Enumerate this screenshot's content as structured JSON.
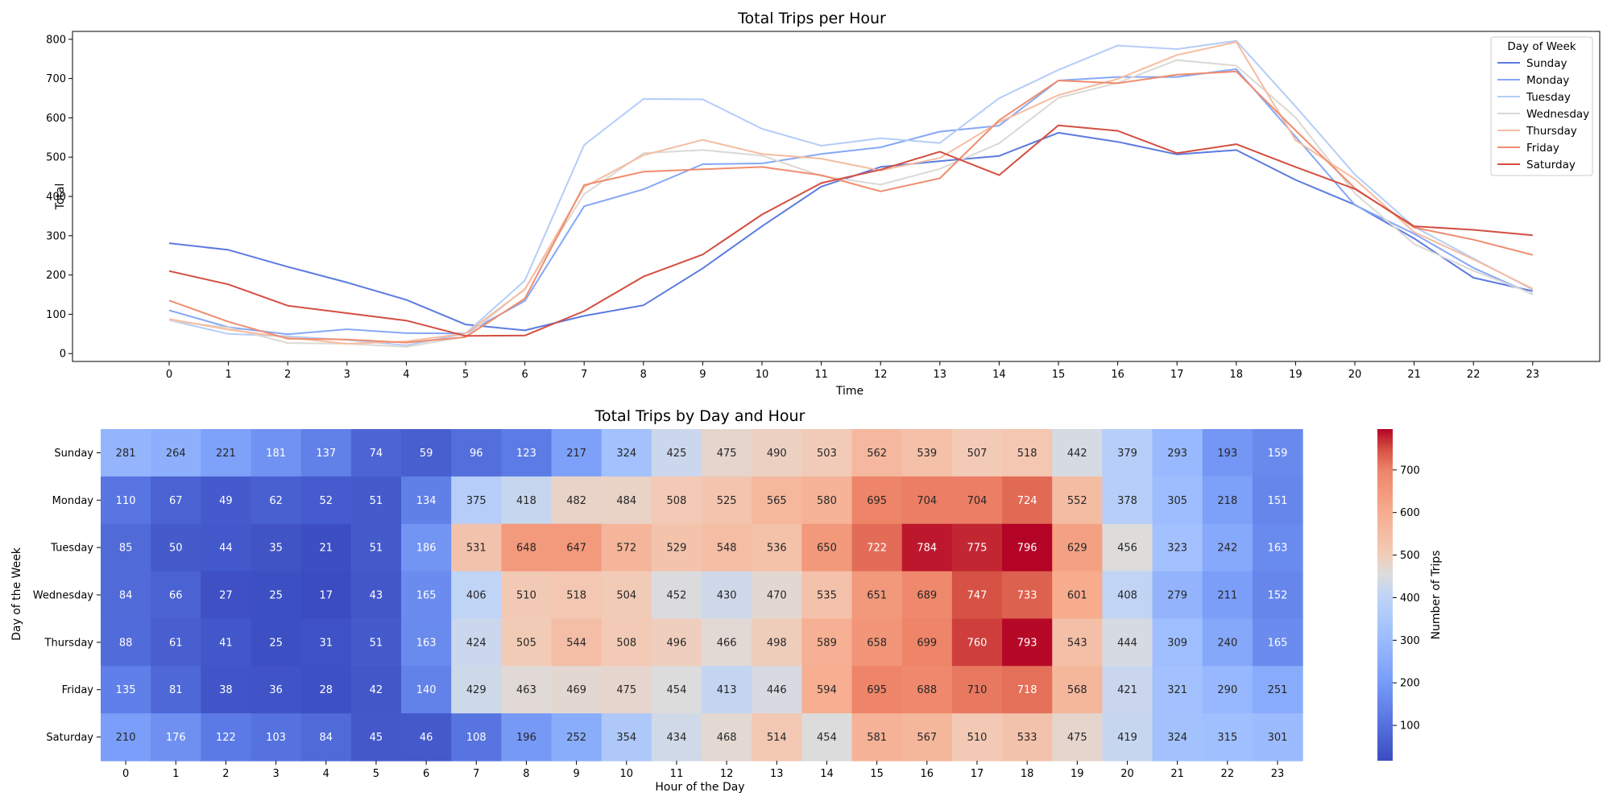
{
  "chart_data": [
    {
      "type": "line",
      "title": "Total Trips per Hour",
      "xlabel": "Time",
      "ylabel": "Total",
      "x": [
        0,
        1,
        2,
        3,
        4,
        5,
        6,
        7,
        8,
        9,
        10,
        11,
        12,
        13,
        14,
        15,
        16,
        17,
        18,
        19,
        20,
        21,
        22,
        23
      ],
      "ylim": [
        -20,
        820
      ],
      "yticks": [
        0,
        100,
        200,
        300,
        400,
        500,
        600,
        700,
        800
      ],
      "grid": false,
      "legend": {
        "title": "Day of Week",
        "placement": "top-right"
      },
      "series": [
        {
          "name": "Sunday",
          "color": "#5b7be0",
          "values": [
            281,
            264,
            221,
            181,
            137,
            74,
            59,
            96,
            123,
            217,
            324,
            425,
            475,
            490,
            503,
            562,
            539,
            507,
            518,
            442,
            379,
            293,
            193,
            159
          ]
        },
        {
          "name": "Monday",
          "color": "#86a8f7",
          "values": [
            110,
            67,
            49,
            62,
            52,
            51,
            134,
            375,
            418,
            482,
            484,
            508,
            525,
            565,
            580,
            695,
            704,
            704,
            724,
            552,
            378,
            305,
            218,
            151
          ]
        },
        {
          "name": "Tuesday",
          "color": "#b4cdf8",
          "values": [
            85,
            50,
            44,
            35,
            21,
            51,
            186,
            531,
            648,
            647,
            572,
            529,
            548,
            536,
            650,
            722,
            784,
            775,
            796,
            629,
            456,
            323,
            242,
            163
          ]
        },
        {
          "name": "Wednesday",
          "color": "#dcd8d4",
          "values": [
            84,
            66,
            27,
            25,
            17,
            43,
            165,
            406,
            510,
            518,
            504,
            452,
            430,
            470,
            535,
            651,
            689,
            747,
            733,
            601,
            408,
            279,
            211,
            152
          ]
        },
        {
          "name": "Thursday",
          "color": "#f6bc9f",
          "values": [
            88,
            61,
            41,
            25,
            31,
            51,
            163,
            424,
            505,
            544,
            508,
            496,
            466,
            498,
            589,
            658,
            699,
            760,
            793,
            543,
            444,
            309,
            240,
            165
          ]
        },
        {
          "name": "Friday",
          "color": "#f08c6e",
          "values": [
            135,
            81,
            38,
            36,
            28,
            42,
            140,
            429,
            463,
            469,
            475,
            454,
            413,
            446,
            594,
            695,
            688,
            710,
            718,
            568,
            421,
            321,
            290,
            251
          ]
        },
        {
          "name": "Saturday",
          "color": "#d44e41",
          "values": [
            210,
            176,
            122,
            103,
            84,
            45,
            46,
            108,
            196,
            252,
            354,
            434,
            468,
            514,
            454,
            581,
            567,
            510,
            533,
            475,
            419,
            324,
            315,
            301
          ]
        }
      ]
    },
    {
      "type": "heatmap",
      "title": "Total Trips by Day and Hour",
      "xlabel": "Hour of the Day",
      "ylabel": "Day of the Week",
      "columns": [
        "0",
        "1",
        "2",
        "3",
        "4",
        "5",
        "6",
        "7",
        "8",
        "9",
        "10",
        "11",
        "12",
        "13",
        "14",
        "15",
        "16",
        "17",
        "18",
        "19",
        "20",
        "21",
        "22",
        "23"
      ],
      "rows": [
        "Sunday",
        "Monday",
        "Tuesday",
        "Wednesday",
        "Thursday",
        "Friday",
        "Saturday"
      ],
      "values": [
        [
          281,
          264,
          221,
          181,
          137,
          74,
          59,
          96,
          123,
          217,
          324,
          425,
          475,
          490,
          503,
          562,
          539,
          507,
          518,
          442,
          379,
          293,
          193,
          159
        ],
        [
          110,
          67,
          49,
          62,
          52,
          51,
          134,
          375,
          418,
          482,
          484,
          508,
          525,
          565,
          580,
          695,
          704,
          704,
          724,
          552,
          378,
          305,
          218,
          151
        ],
        [
          85,
          50,
          44,
          35,
          21,
          51,
          186,
          531,
          648,
          647,
          572,
          529,
          548,
          536,
          650,
          722,
          784,
          775,
          796,
          629,
          456,
          323,
          242,
          163
        ],
        [
          84,
          66,
          27,
          25,
          17,
          43,
          165,
          406,
          510,
          518,
          504,
          452,
          430,
          470,
          535,
          651,
          689,
          747,
          733,
          601,
          408,
          279,
          211,
          152
        ],
        [
          88,
          61,
          41,
          25,
          31,
          51,
          163,
          424,
          505,
          544,
          508,
          496,
          466,
          498,
          589,
          658,
          699,
          760,
          793,
          543,
          444,
          309,
          240,
          165
        ],
        [
          135,
          81,
          38,
          36,
          28,
          42,
          140,
          429,
          463,
          469,
          475,
          454,
          413,
          446,
          594,
          695,
          688,
          710,
          718,
          568,
          421,
          321,
          290,
          251
        ],
        [
          210,
          176,
          122,
          103,
          84,
          45,
          46,
          108,
          196,
          252,
          354,
          434,
          468,
          514,
          454,
          581,
          567,
          510,
          533,
          475,
          419,
          324,
          315,
          301
        ]
      ],
      "colormap": "coolwarm",
      "value_range": [
        17,
        796
      ],
      "colorbar": {
        "label": "Number of Trips",
        "ticks": [
          100,
          200,
          300,
          400,
          500,
          600,
          700
        ]
      }
    }
  ]
}
